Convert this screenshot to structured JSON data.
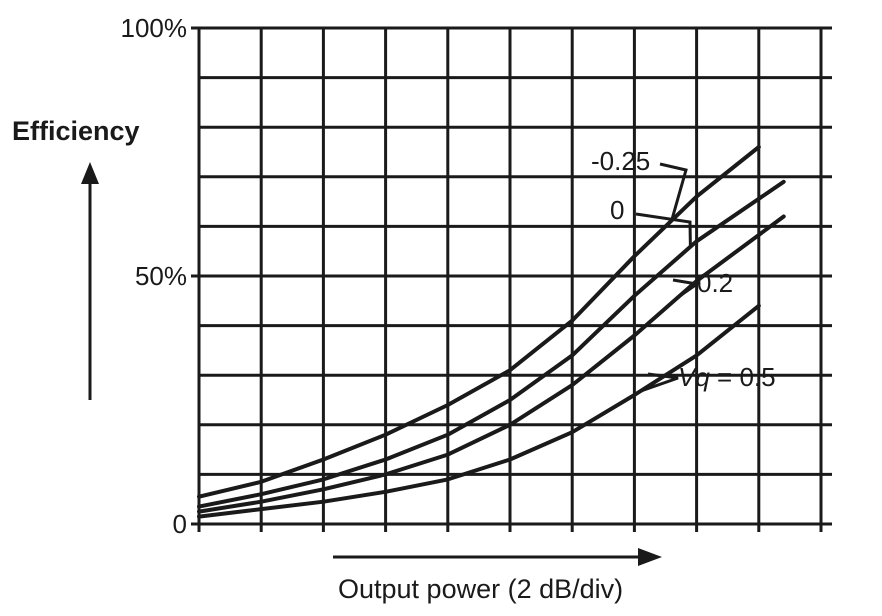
{
  "chart_data": {
    "type": "line",
    "title": "",
    "ylabel": "Efficiency",
    "xlabel": "Output power (2 dB/div)",
    "ylim": [
      0,
      100
    ],
    "xlim": [
      0,
      10
    ],
    "y_ticks": [
      {
        "value": 0,
        "label": "0"
      },
      {
        "value": 50,
        "label": "50%"
      },
      {
        "value": 100,
        "label": "100%"
      }
    ],
    "grid": true,
    "series": [
      {
        "name": "-0.25",
        "label_text": "-0.25",
        "x": [
          0,
          1,
          2,
          3,
          4,
          5,
          6,
          7,
          8,
          9
        ],
        "values": [
          5.5,
          8.5,
          13,
          18,
          24,
          31,
          41,
          54,
          66,
          76
        ]
      },
      {
        "name": "0",
        "label_text": "0",
        "x": [
          0,
          1,
          2,
          3,
          4,
          5,
          6,
          7,
          8,
          9.4
        ],
        "values": [
          3.5,
          6,
          9,
          13,
          18,
          25,
          34,
          46,
          57,
          69
        ]
      },
      {
        "name": "0.2",
        "label_text": "0.2",
        "x": [
          0,
          1,
          2,
          3,
          4,
          5,
          6,
          7,
          8,
          9.4
        ],
        "values": [
          2.5,
          4.5,
          7,
          10,
          14,
          20,
          28,
          38,
          49,
          62
        ]
      },
      {
        "name": "Vq = 0.5",
        "label_prefix": "Vq",
        "label_text": " = 0.5",
        "x": [
          0,
          1,
          2,
          3,
          4,
          5,
          6,
          7,
          8,
          9
        ],
        "values": [
          1.5,
          3,
          4.5,
          6.5,
          9,
          13,
          18.5,
          26,
          34,
          44
        ]
      }
    ]
  }
}
